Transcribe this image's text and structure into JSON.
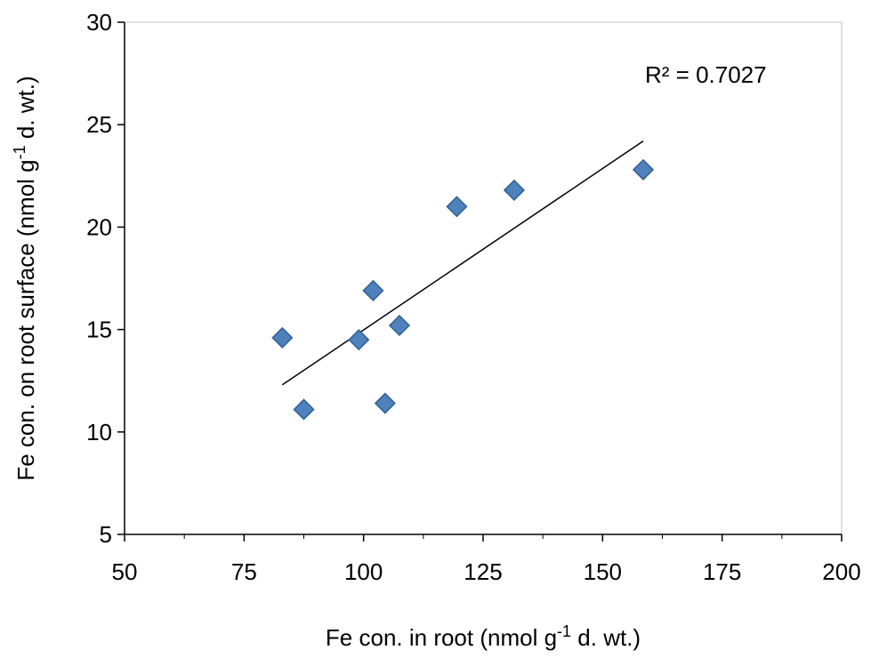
{
  "chart_data": {
    "type": "scatter",
    "title": "",
    "xlabel": "Fe con. in root (nmol g-1 d. wt.)",
    "ylabel": "Fe con. on root surface (nmol g-1 d. wt.)",
    "xlim": [
      50,
      200
    ],
    "ylim": [
      5,
      30
    ],
    "xticks": [
      50,
      75,
      100,
      125,
      150,
      175,
      200
    ],
    "yticks": [
      5,
      10,
      15,
      20,
      25,
      30
    ],
    "grid": false,
    "marker": "diamond",
    "marker_color": "#4F81BD",
    "points": [
      {
        "x": 83,
        "y": 14.6
      },
      {
        "x": 87.5,
        "y": 11.1
      },
      {
        "x": 99,
        "y": 14.5
      },
      {
        "x": 102,
        "y": 16.9
      },
      {
        "x": 104.5,
        "y": 11.4
      },
      {
        "x": 107.5,
        "y": 15.2
      },
      {
        "x": 119.5,
        "y": 21
      },
      {
        "x": 131.5,
        "y": 21.8
      },
      {
        "x": 158.5,
        "y": 22.8
      }
    ],
    "trendline": {
      "type": "linear",
      "color": "#000000",
      "x_start": 83,
      "x_end": 158.5,
      "y_start": 12.3,
      "y_end": 24.2
    },
    "annotation": "R² = 0.7027"
  }
}
